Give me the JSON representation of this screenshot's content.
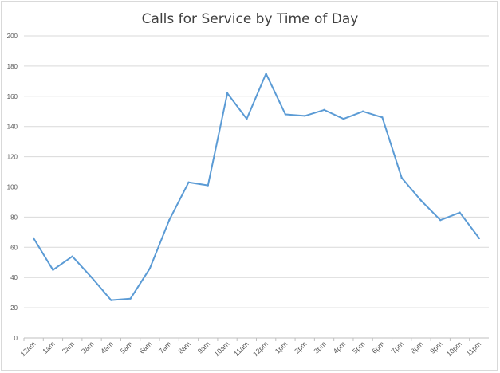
{
  "chart_data": {
    "type": "line",
    "title": "Calls for Service by Time of Day",
    "xlabel": "",
    "ylabel": "",
    "categories": [
      "12am",
      "1am",
      "2am",
      "3am",
      "4am",
      "5am",
      "6am",
      "7am",
      "8am",
      "9am",
      "10am",
      "11am",
      "12pm",
      "1pm",
      "2pm",
      "3pm",
      "4pm",
      "5pm",
      "6pm",
      "7pm",
      "8pm",
      "9pm",
      "10pm",
      "11pm"
    ],
    "series": [
      {
        "values": [
          66,
          45,
          54,
          40,
          25,
          26,
          46,
          78,
          103,
          101,
          162,
          145,
          175,
          148,
          147,
          151,
          145,
          150,
          146,
          106,
          91,
          78,
          83,
          66
        ],
        "color": "#5b9bd5"
      }
    ],
    "ylim": [
      0,
      200
    ],
    "y_ticks": [
      0,
      20,
      40,
      60,
      80,
      100,
      120,
      140,
      160,
      180,
      200
    ],
    "grid": true,
    "legend": "none"
  }
}
